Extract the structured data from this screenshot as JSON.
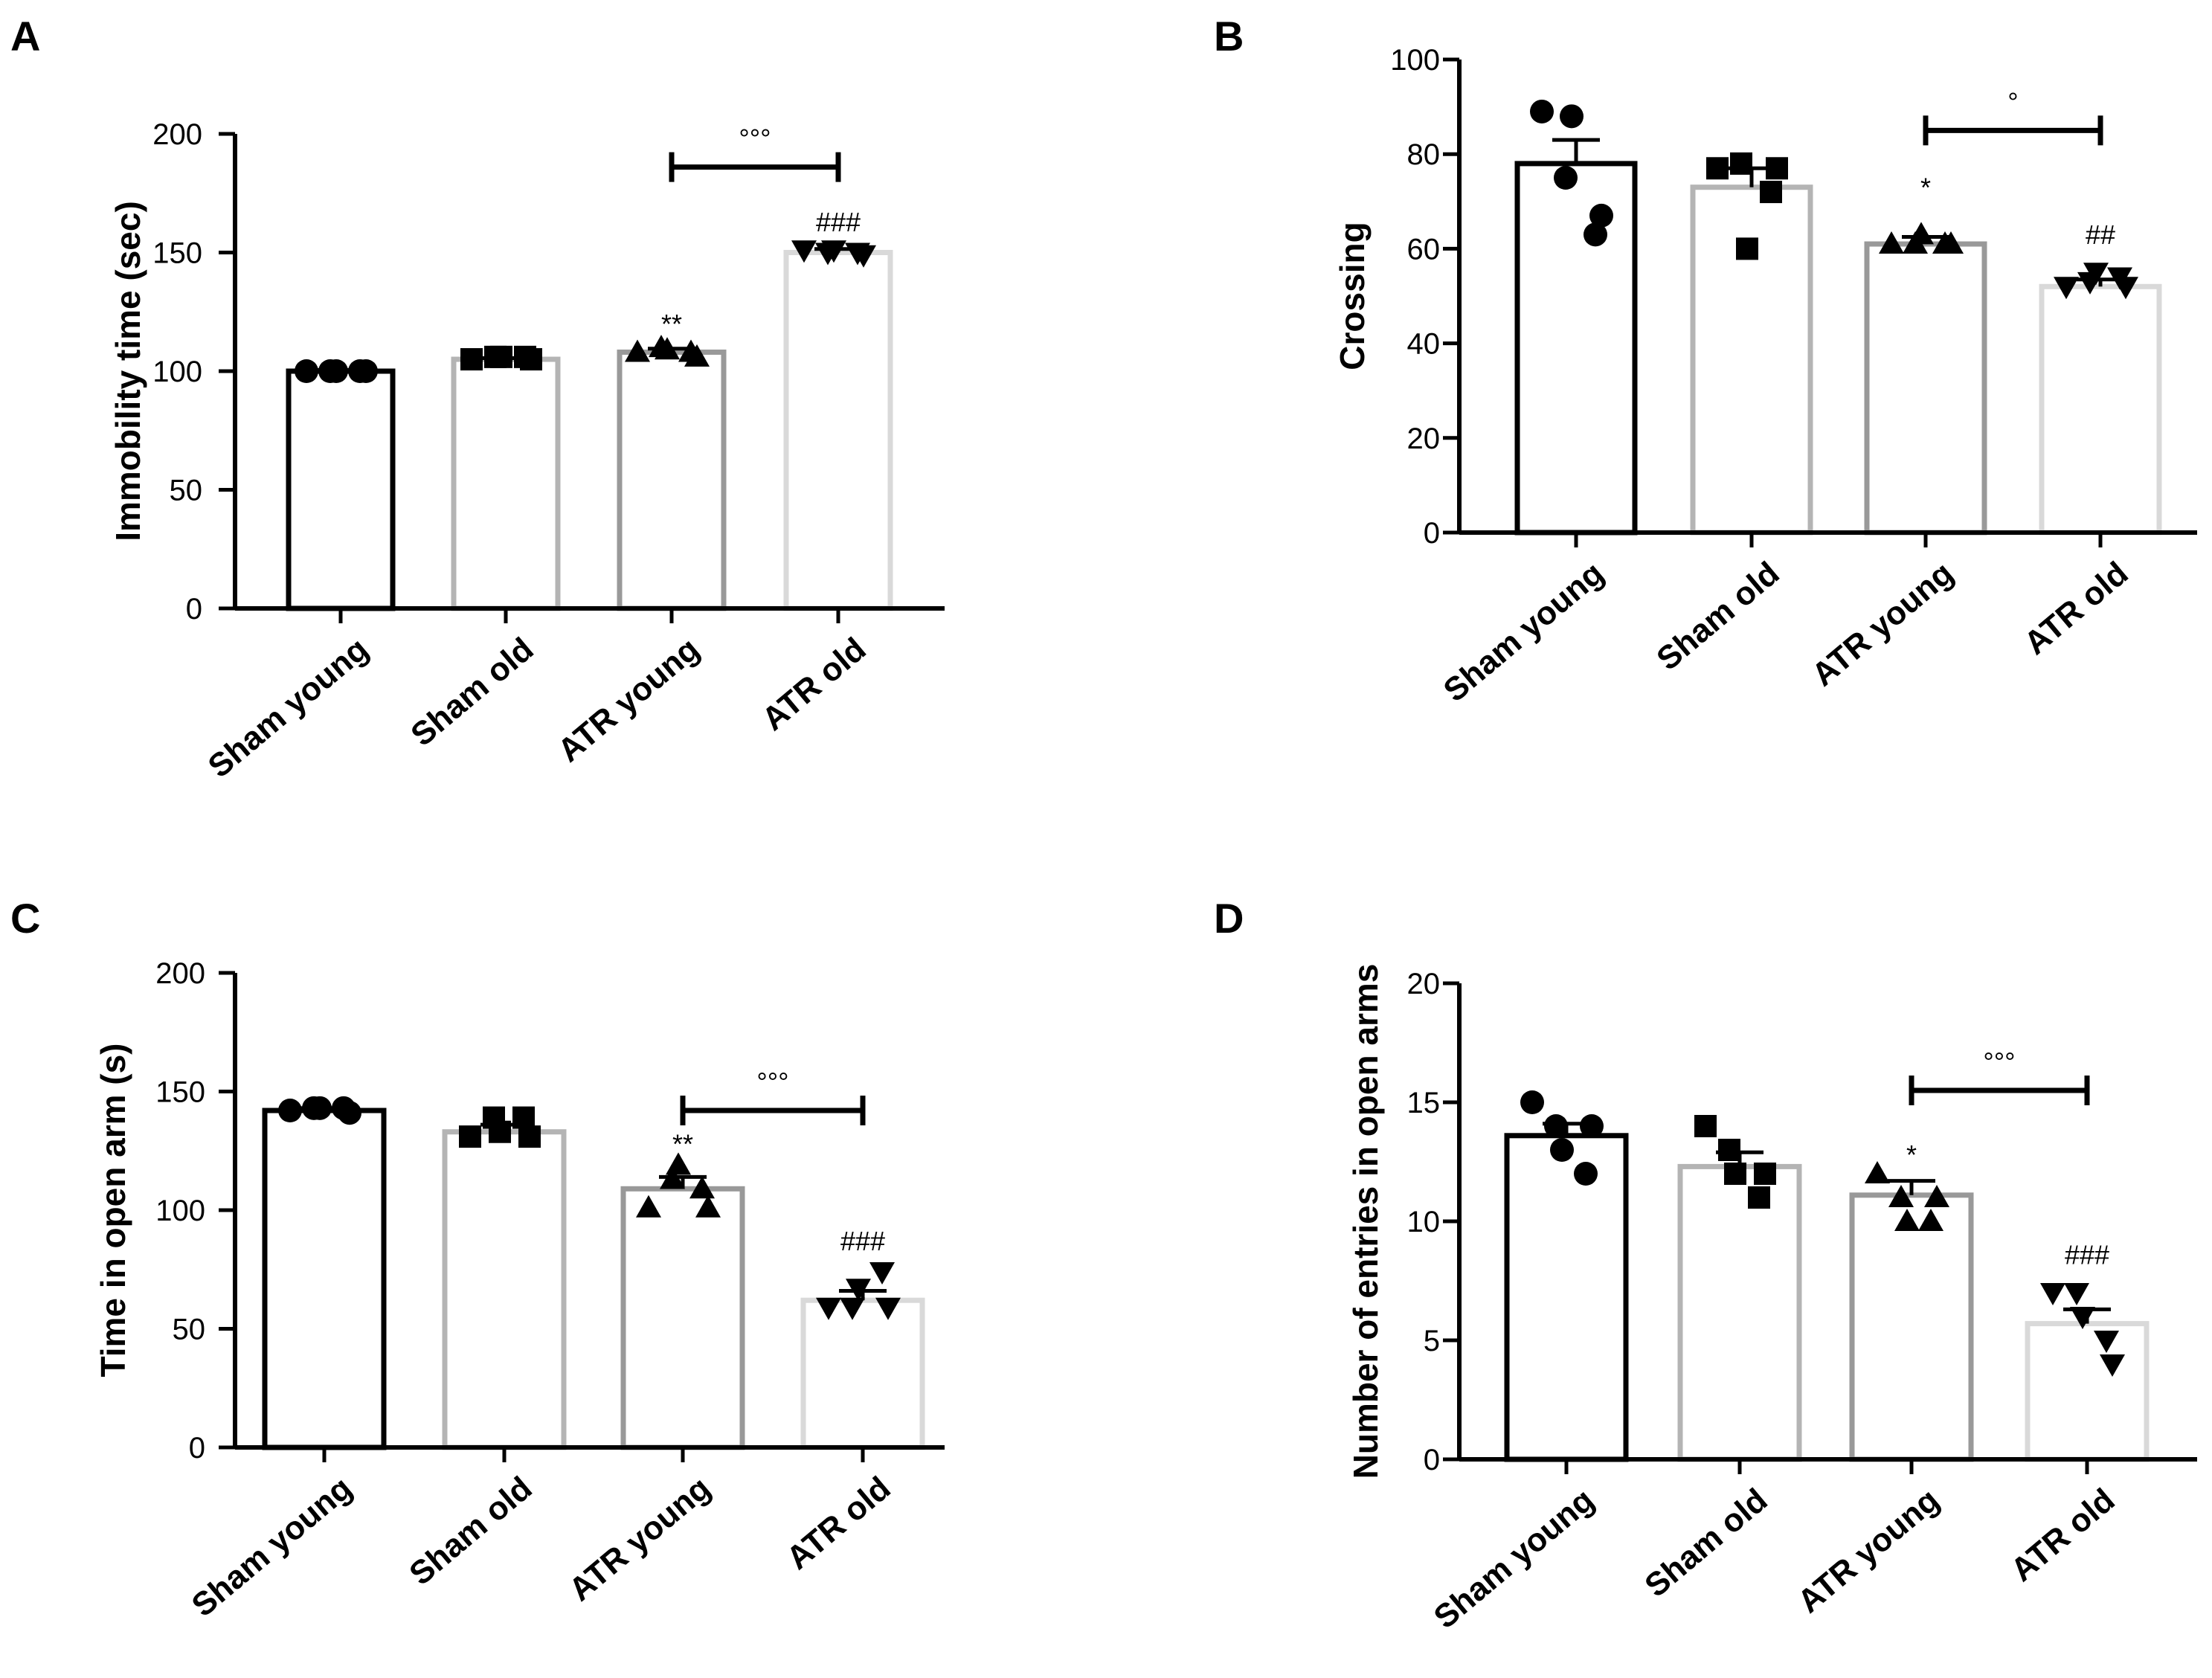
{
  "colors": {
    "sham_young": "#000000",
    "sham_old": "#b4b4b4",
    "atr_young": "#999999",
    "atr_old": "#d9d9d9",
    "axis": "#000000"
  },
  "chart_data": [
    {
      "panel": "A",
      "type": "bar",
      "ylabel": "Immobility time (sec)",
      "ylim": [
        0,
        200
      ],
      "yticks": [
        "0",
        "50",
        "100",
        "150",
        "200"
      ],
      "categories": [
        "Sham young",
        "Sham old",
        "ATR young",
        "ATR old"
      ],
      "markers": [
        "circle",
        "square",
        "triangle-up",
        "triangle-down"
      ],
      "values": [
        100,
        105,
        108,
        150
      ],
      "errors": [
        0.5,
        0.5,
        1.5,
        1.5
      ],
      "points": [
        [
          100,
          100,
          100,
          100,
          100
        ],
        [
          105,
          106,
          106,
          106,
          105
        ],
        [
          108,
          110,
          109,
          108,
          106
        ],
        [
          151,
          150,
          151,
          150,
          149
        ]
      ],
      "annotations": [
        {
          "text": "**",
          "category": 2,
          "y": 116
        },
        {
          "text": "###",
          "category": 3,
          "y": 159
        }
      ],
      "bracket": {
        "from": 2,
        "to": 3,
        "y": 186,
        "text": "°°°"
      }
    },
    {
      "panel": "B",
      "type": "bar",
      "ylabel": "Crossing",
      "ylim": [
        0,
        100
      ],
      "yticks": [
        "0",
        "20",
        "40",
        "60",
        "80",
        "100"
      ],
      "categories": [
        "Sham young",
        "Sham old",
        "ATR young",
        "ATR old"
      ],
      "markers": [
        "circle",
        "square",
        "triangle-up",
        "triangle-down"
      ],
      "values": [
        78,
        73,
        61,
        52
      ],
      "errors": [
        5,
        4,
        1.5,
        1.5
      ],
      "points": [
        [
          89,
          75,
          88,
          63,
          67
        ],
        [
          77,
          78,
          60,
          72,
          77
        ],
        [
          61,
          61,
          63,
          61,
          61
        ],
        [
          52,
          53,
          55,
          54,
          52
        ]
      ],
      "annotations": [
        {
          "text": "*",
          "category": 2,
          "y": 71
        },
        {
          "text": "##",
          "category": 3,
          "y": 61
        }
      ],
      "bracket": {
        "from": 2,
        "to": 3,
        "y": 85,
        "text": "°"
      }
    },
    {
      "panel": "C",
      "type": "bar",
      "ylabel": "Time in open arm (s)",
      "ylim": [
        0,
        200
      ],
      "yticks": [
        "0",
        "50",
        "100",
        "150",
        "200"
      ],
      "categories": [
        "Sham young",
        "Sham old",
        "ATR young",
        "ATR old"
      ],
      "markers": [
        "circle",
        "square",
        "triangle-up",
        "triangle-down"
      ],
      "values": [
        142,
        133,
        109,
        62
      ],
      "errors": [
        1,
        3,
        5,
        4
      ],
      "points": [
        [
          142,
          143,
          143,
          143,
          141
        ],
        [
          131,
          139,
          133,
          139,
          131
        ],
        [
          101,
          113,
          119,
          109,
          101
        ],
        [
          59,
          59,
          67,
          74,
          59
        ]
      ],
      "annotations": [
        {
          "text": "**",
          "category": 2,
          "y": 124
        },
        {
          "text": "###",
          "category": 3,
          "y": 83
        }
      ],
      "bracket": {
        "from": 2,
        "to": 3,
        "y": 142,
        "text": "°°°"
      }
    },
    {
      "panel": "D",
      "type": "bar",
      "ylabel": "Number of entries in open arms",
      "ylim": [
        0,
        20
      ],
      "yticks": [
        "0",
        "5",
        "10",
        "15",
        "20"
      ],
      "categories": [
        "Sham young",
        "Sham old",
        "ATR young",
        "ATR old"
      ],
      "markers": [
        "circle",
        "square",
        "triangle-up",
        "triangle-down"
      ],
      "values": [
        13.6,
        12.3,
        11.1,
        5.7
      ],
      "errors": [
        0.5,
        0.6,
        0.6,
        0.6
      ],
      "points": [
        [
          15,
          14,
          13,
          12,
          14
        ],
        [
          14,
          13,
          12,
          11,
          12
        ],
        [
          12,
          11,
          10,
          10,
          11
        ],
        [
          7,
          7,
          6,
          5,
          4
        ]
      ],
      "annotations": [
        {
          "text": "*",
          "category": 2,
          "y": 12.4
        },
        {
          "text": "###",
          "category": 3,
          "y": 8.2
        }
      ],
      "bracket": {
        "from": 2,
        "to": 3,
        "y": 15.5,
        "text": "°°°"
      }
    }
  ]
}
